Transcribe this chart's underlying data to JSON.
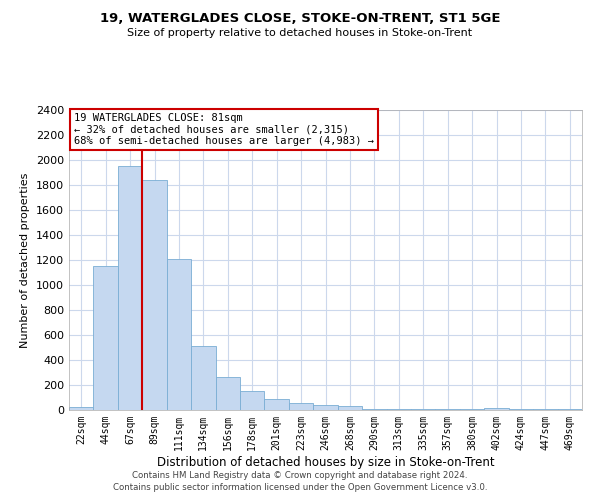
{
  "title": "19, WATERGLADES CLOSE, STOKE-ON-TRENT, ST1 5GE",
  "subtitle": "Size of property relative to detached houses in Stoke-on-Trent",
  "xlabel": "Distribution of detached houses by size in Stoke-on-Trent",
  "ylabel": "Number of detached properties",
  "categories": [
    "22sqm",
    "44sqm",
    "67sqm",
    "89sqm",
    "111sqm",
    "134sqm",
    "156sqm",
    "178sqm",
    "201sqm",
    "223sqm",
    "246sqm",
    "268sqm",
    "290sqm",
    "313sqm",
    "335sqm",
    "357sqm",
    "380sqm",
    "402sqm",
    "424sqm",
    "447sqm",
    "469sqm"
  ],
  "values": [
    25,
    1150,
    1950,
    1840,
    1210,
    510,
    265,
    150,
    85,
    55,
    40,
    35,
    10,
    10,
    5,
    5,
    5,
    20,
    5,
    5,
    5
  ],
  "bar_color": "#c5d8f0",
  "bar_edge_color": "#7aadd4",
  "vline_x": 2.5,
  "vline_color": "#cc0000",
  "ylim": [
    0,
    2400
  ],
  "yticks": [
    0,
    200,
    400,
    600,
    800,
    1000,
    1200,
    1400,
    1600,
    1800,
    2000,
    2200,
    2400
  ],
  "annotation_text": "19 WATERGLADES CLOSE: 81sqm\n← 32% of detached houses are smaller (2,315)\n68% of semi-detached houses are larger (4,983) →",
  "annotation_box_color": "#ffffff",
  "annotation_box_edge": "#cc0000",
  "footer1": "Contains HM Land Registry data © Crown copyright and database right 2024.",
  "footer2": "Contains public sector information licensed under the Open Government Licence v3.0.",
  "bg_color": "#ffffff",
  "grid_color": "#ccd8ec"
}
